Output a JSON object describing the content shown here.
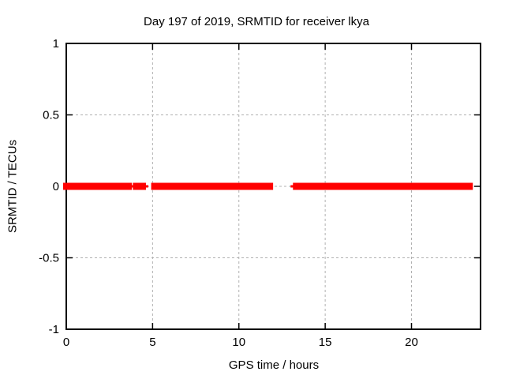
{
  "chart_data": {
    "type": "scatter",
    "title": "Day 197 of 2019, SRMTID for receiver lkya",
    "xlabel": "GPS time / hours",
    "ylabel": "SRMTID / TECUs",
    "xlim": [
      0,
      24
    ],
    "ylim": [
      -1,
      1
    ],
    "xticks": [
      0,
      5,
      10,
      15,
      20
    ],
    "xtick_labels": [
      "0",
      "5",
      "10",
      "15",
      "20"
    ],
    "yticks": [
      1,
      0.5,
      0,
      -0.5,
      -1
    ],
    "ytick_labels": [
      "1",
      "0.5",
      "0",
      "-0.5",
      "-1"
    ],
    "grid": true,
    "grid_style": "dashed",
    "grid_color": "#b0b0b0",
    "border_color": "#000000",
    "background_color": "#ffffff",
    "legend": "none",
    "series": [
      {
        "name": "SRMTID",
        "marker": "plus",
        "color": "#ff0000",
        "y_value": 0,
        "segments_hours": [
          [
            0.0,
            3.53
          ],
          [
            3.66,
            3.8
          ],
          [
            3.86,
            3.99
          ],
          [
            4.05,
            4.42
          ],
          [
            4.49,
            4.6
          ],
          [
            5.1,
            5.34
          ],
          [
            5.49,
            10.25
          ],
          [
            10.42,
            11.1
          ],
          [
            11.35,
            11.8
          ],
          [
            13.15,
            13.25
          ],
          [
            13.35,
            20.52
          ],
          [
            20.76,
            20.99
          ],
          [
            21.17,
            23.37
          ]
        ]
      }
    ]
  }
}
